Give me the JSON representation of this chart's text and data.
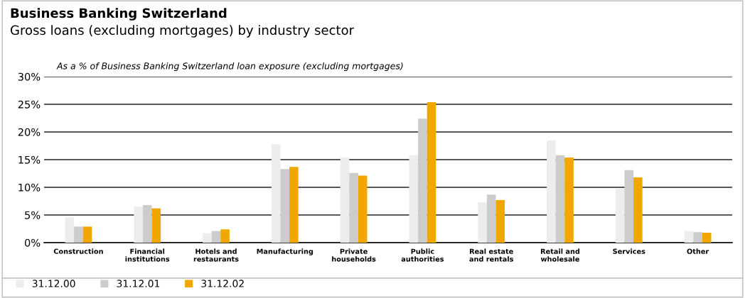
{
  "chart_data": {
    "type": "bar",
    "title": "Business Banking Switzerland",
    "subtitle": "Gross loans (excluding mortgages) by industry sector",
    "annotations": [
      "As a % of Business Banking Switzerland loan exposure (excluding mortgages)"
    ],
    "categories": [
      "Construction",
      "Financial\ninstitutions",
      "Hotels and\nrestaurants",
      "Manufacturing",
      "Private\nhouseholds",
      "Public\nauthorities",
      "Real estate\nand rentals",
      "Retail and\nwholesale",
      "Services",
      "Other"
    ],
    "series": [
      {
        "name": "31.12.00",
        "color": "#ededed",
        "values": [
          4.6,
          6.5,
          1.7,
          17.8,
          15.4,
          15.8,
          7.3,
          18.5,
          9.7,
          2.1
        ]
      },
      {
        "name": "31.12.01",
        "color": "#cccccc",
        "values": [
          2.9,
          6.8,
          2.1,
          13.3,
          12.6,
          22.4,
          8.7,
          15.8,
          13.1,
          1.9
        ]
      },
      {
        "name": "31.12.02",
        "color": "#f0a800",
        "values": [
          2.9,
          6.2,
          2.4,
          13.7,
          12.1,
          25.4,
          7.7,
          15.4,
          11.8,
          1.8
        ]
      }
    ],
    "ylim": [
      0,
      30
    ],
    "yticks": [
      {
        "value": 0,
        "label": "0%"
      },
      {
        "value": 5,
        "label": "5%"
      },
      {
        "value": 10,
        "label": "10%"
      },
      {
        "value": 15,
        "label": "15%"
      },
      {
        "value": 20,
        "label": "20%"
      },
      {
        "value": 25,
        "label": "25%"
      },
      {
        "value": 30,
        "label": "30%"
      }
    ],
    "grid": "y",
    "legend": "bottom"
  }
}
